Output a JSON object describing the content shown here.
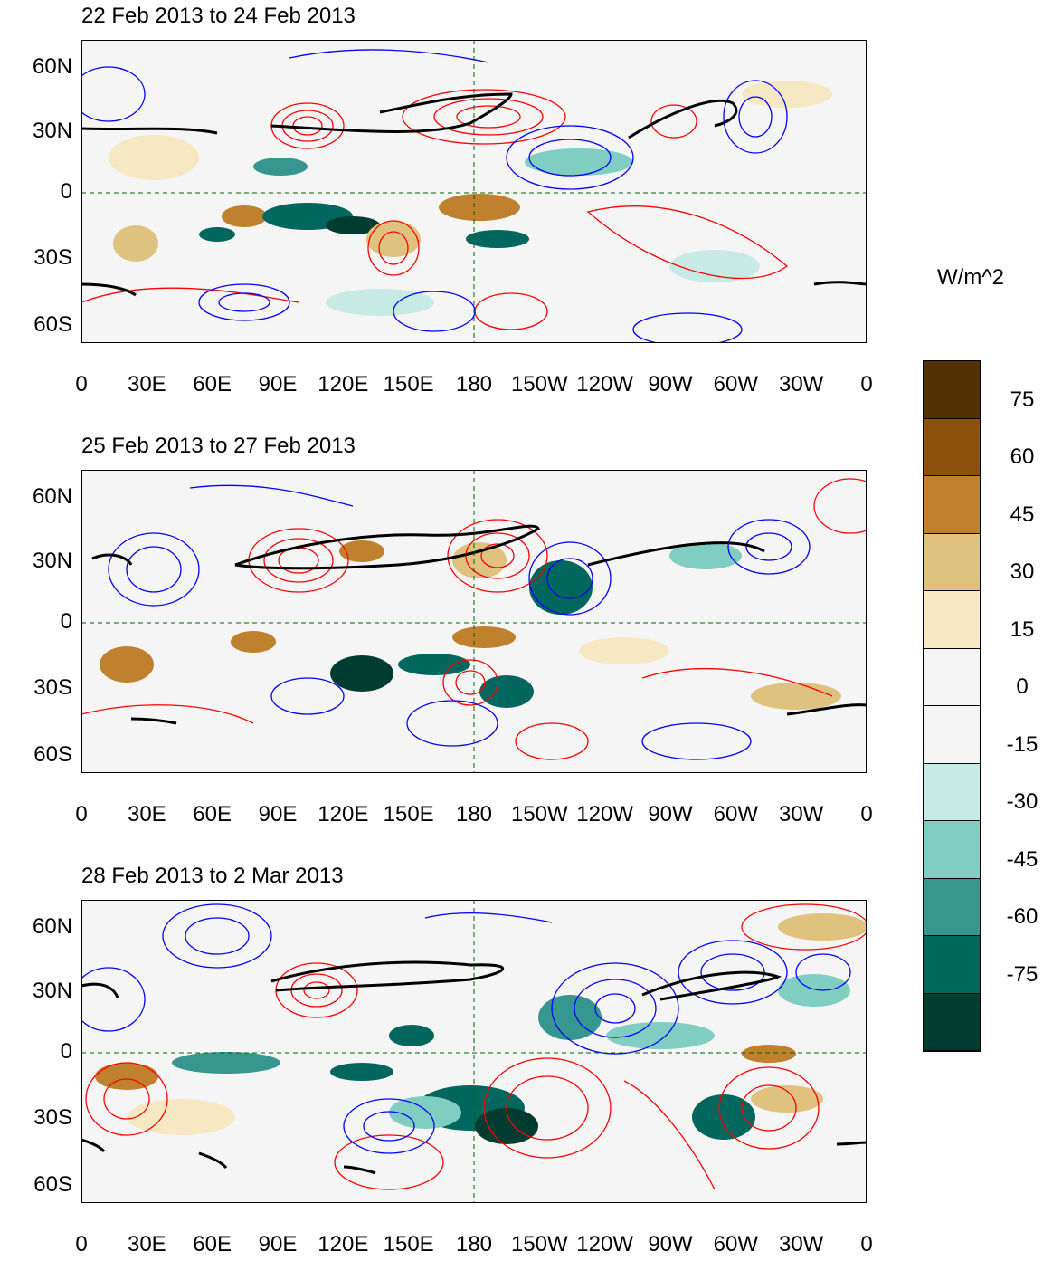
{
  "panels": [
    {
      "title": "22 Feb 2013 to 24 Feb 2013"
    },
    {
      "title": "25 Feb 2013 to 27 Feb 2013"
    },
    {
      "title": "28 Feb 2013 to 2 Mar 2013"
    }
  ],
  "lat_labels": [
    "60N",
    "30N",
    "0",
    "30S",
    "60S"
  ],
  "lon_labels": [
    "0",
    "30E",
    "60E",
    "90E",
    "120E",
    "150E",
    "180",
    "150W",
    "120W",
    "90W",
    "60W",
    "30W",
    "0"
  ],
  "colorbar": {
    "unit": "W/m^2",
    "labels": [
      "75",
      "60",
      "45",
      "30",
      "15",
      "0",
      "-15",
      "-30",
      "-45",
      "-60",
      "-75"
    ],
    "colors": [
      "#543005",
      "#8c510a",
      "#bf812d",
      "#dfc27d",
      "#f6e8c3",
      "#f5f5f5",
      "#f5f5f5",
      "#c7eae5",
      "#80cdc1",
      "#35978f",
      "#01665e",
      "#003c30"
    ]
  },
  "legend_colors": {
    "positive_contour": "#ff0000",
    "negative_contour": "#0000ff",
    "jet_contour": "#000000",
    "coastline": "#006400"
  }
}
